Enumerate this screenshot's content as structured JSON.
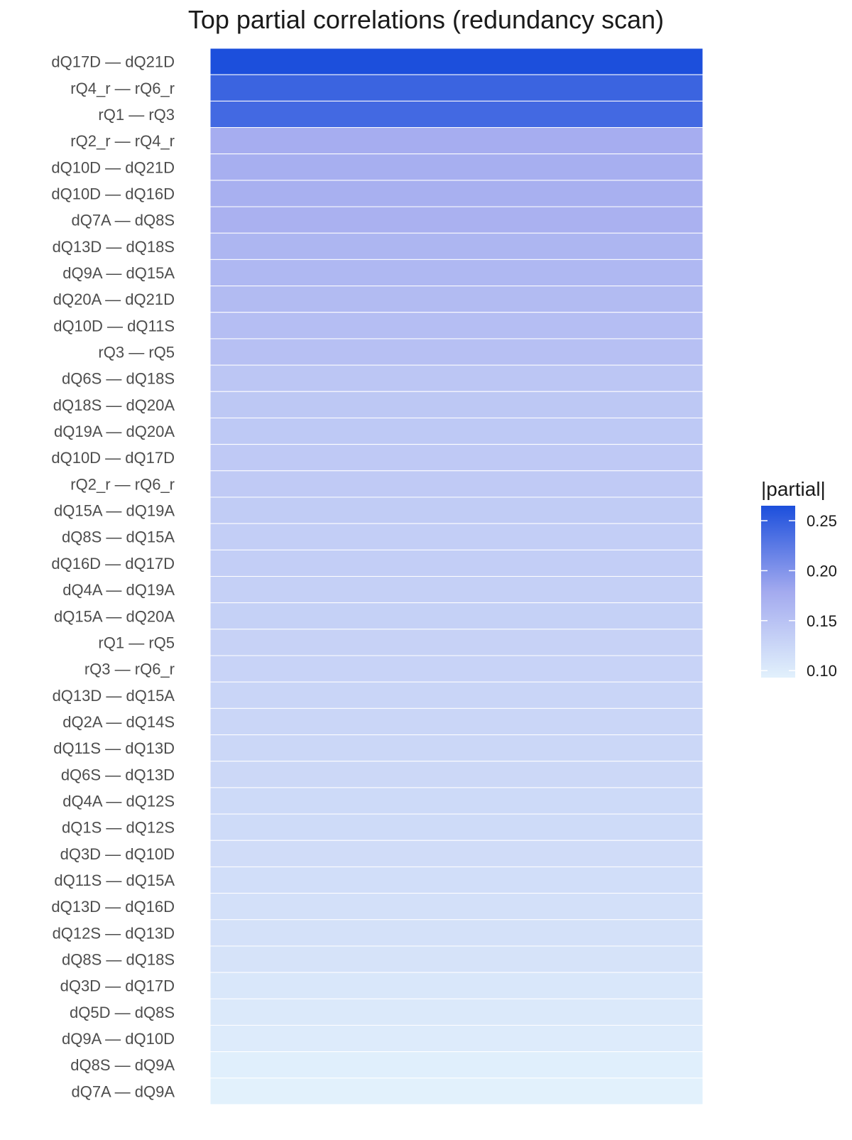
{
  "chart_data": {
    "type": "heatmap",
    "title": "Top partial correlations (redundancy scan)",
    "xlabel": "",
    "ylabel": "",
    "categories": [
      "dQ17D — dQ21D",
      "rQ4_r — rQ6_r",
      "rQ1 — rQ3",
      "rQ2_r — rQ4_r",
      "dQ10D — dQ21D",
      "dQ10D — dQ16D",
      "dQ7A — dQ8S",
      "dQ13D — dQ18S",
      "dQ9A — dQ15A",
      "dQ20A — dQ21D",
      "dQ10D — dQ11S",
      "rQ3 — rQ5",
      "dQ6S — dQ18S",
      "dQ18S — dQ20A",
      "dQ19A — dQ20A",
      "dQ10D — dQ17D",
      "rQ2_r — rQ6_r",
      "dQ15A — dQ19A",
      "dQ8S — dQ15A",
      "dQ16D — dQ17D",
      "dQ4A — dQ19A",
      "dQ15A — dQ20A",
      "rQ1 — rQ5",
      "rQ3 — rQ6_r",
      "dQ13D — dQ15A",
      "dQ2A — dQ14S",
      "dQ11S — dQ13D",
      "dQ6S — dQ13D",
      "dQ4A — dQ12S",
      "dQ1S — dQ12S",
      "dQ3D — dQ10D",
      "dQ11S — dQ15A",
      "dQ13D — dQ16D",
      "dQ12S — dQ13D",
      "dQ8S — dQ18S",
      "dQ3D — dQ17D",
      "dQ5D — dQ8S",
      "dQ9A — dQ10D",
      "dQ8S — dQ9A",
      "dQ7A — dQ9A"
    ],
    "values": [
      0.265,
      0.245,
      0.24,
      0.175,
      0.173,
      0.172,
      0.17,
      0.165,
      0.162,
      0.158,
      0.155,
      0.152,
      0.145,
      0.143,
      0.142,
      0.141,
      0.14,
      0.138,
      0.136,
      0.135,
      0.133,
      0.132,
      0.13,
      0.129,
      0.127,
      0.126,
      0.124,
      0.123,
      0.121,
      0.12,
      0.118,
      0.116,
      0.114,
      0.112,
      0.11,
      0.105,
      0.103,
      0.1,
      0.096,
      0.093
    ],
    "legend": {
      "title": "|partial|",
      "placement": "right",
      "ticks": [
        0.1,
        0.15,
        0.2,
        0.25
      ],
      "tick_labels": [
        "0.10",
        "0.15",
        "0.20",
        "0.25"
      ],
      "range": [
        0.093,
        0.265
      ]
    },
    "colors": {
      "low": "#e2f1fc",
      "mid": "#a3aaef",
      "high": "#1c4fdc",
      "label": "#4d4d4d",
      "title": "#1a1a1a"
    },
    "grid": false
  }
}
